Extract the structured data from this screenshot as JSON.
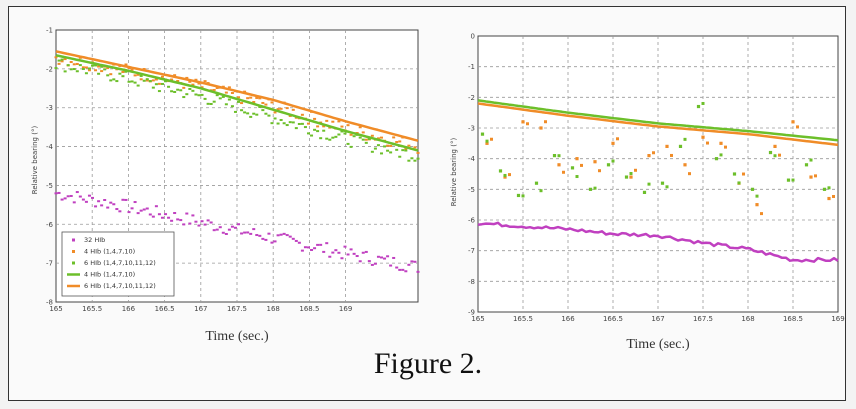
{
  "caption": "Figure 2.",
  "colors": {
    "magenta": "#c040c0",
    "orange": "#f08c28",
    "green": "#6cbf2a",
    "grid": "#9a9a9a"
  },
  "chart_data": [
    {
      "type": "line",
      "xlabel": "Time (sec.)",
      "ylabel": "Relative bearing (°)",
      "xlim": [
        165,
        170
      ],
      "ylim": [
        -8,
        -1
      ],
      "xticks": [
        165,
        165.5,
        166,
        166.5,
        167,
        167.5,
        168,
        168.5,
        169
      ],
      "xtick_labels": [
        "165",
        "165.5",
        "166",
        "166.5",
        "167",
        "167.5",
        "168",
        "168.5",
        "169"
      ],
      "yticks": [
        -1,
        -2,
        -3,
        -4,
        -5,
        -6,
        -7,
        -8
      ],
      "ytick_labels": [
        "-1",
        "-2",
        "-3",
        "-4",
        "-5",
        "-6",
        "-7",
        "-8"
      ],
      "grid": true,
      "legend": "bottom-left",
      "series": [
        {
          "name": "32 HIb",
          "style": "points",
          "color": "#c040c0",
          "x": [
            165,
            166,
            167,
            168,
            169,
            170
          ],
          "y": [
            -5.2,
            -5.55,
            -5.95,
            -6.35,
            -6.75,
            -7.1
          ]
        },
        {
          "name": "4 HIb (1,4,7,10)",
          "style": "points",
          "color": "#f08c28",
          "x": [
            165,
            166,
            167,
            168,
            169,
            170
          ],
          "y": [
            -1.7,
            -2.05,
            -2.45,
            -2.95,
            -3.55,
            -4.0
          ]
        },
        {
          "name": "6 HIb (1,4,7,10,11,12)",
          "style": "points",
          "color": "#6cbf2a",
          "x": [
            165,
            166,
            167,
            168,
            169,
            170
          ],
          "y": [
            -1.85,
            -2.25,
            -2.7,
            -3.25,
            -3.8,
            -4.25
          ]
        },
        {
          "name": "4 HIb (1,4,7,10)",
          "style": "line",
          "color": "#6cbf2a",
          "x": [
            165,
            166,
            167,
            168,
            169,
            170
          ],
          "y": [
            -1.65,
            -2.05,
            -2.5,
            -3.05,
            -3.6,
            -4.1
          ]
        },
        {
          "name": "6 HIb (1,4,7,10,11,12)",
          "style": "line",
          "color": "#f08c28",
          "x": [
            165,
            166,
            167,
            168,
            169,
            170
          ],
          "y": [
            -1.55,
            -1.95,
            -2.35,
            -2.8,
            -3.35,
            -3.85
          ]
        }
      ]
    },
    {
      "type": "line",
      "xlabel": "Time (sec.)",
      "ylabel": "Relative bearing (°)",
      "xlim": [
        165,
        169
      ],
      "ylim": [
        -9,
        0
      ],
      "xticks": [
        165,
        165.5,
        166,
        166.5,
        167,
        167.5,
        168,
        168.5,
        169
      ],
      "xtick_labels": [
        "165",
        "165.5",
        "166",
        "166.5",
        "167",
        "167.5",
        "168",
        "168.5",
        "169"
      ],
      "yticks": [
        0,
        -1,
        -2,
        -3,
        -4,
        -5,
        -6,
        -7,
        -8,
        -9
      ],
      "ytick_labels": [
        "0",
        "-1",
        "-2",
        "-3",
        "-4",
        "-5",
        "-6",
        "-7",
        "-8",
        "-9"
      ],
      "grid": true,
      "legend": "none",
      "series": [
        {
          "style": "line",
          "color": "#c040c0",
          "x": [
            165,
            165.5,
            166,
            166.5,
            167,
            167.5,
            168,
            168.5,
            169
          ],
          "y": [
            -6.1,
            -6.2,
            -6.3,
            -6.45,
            -6.5,
            -6.75,
            -6.95,
            -7.3,
            -7.3
          ]
        },
        {
          "style": "line",
          "color": "#6cbf2a",
          "x": [
            165,
            166,
            167,
            168,
            169
          ],
          "y": [
            -2.1,
            -2.5,
            -2.85,
            -3.1,
            -3.4
          ]
        },
        {
          "style": "line",
          "color": "#f08c28",
          "x": [
            165,
            166,
            167,
            168,
            169
          ],
          "y": [
            -2.2,
            -2.6,
            -2.95,
            -3.2,
            -3.55
          ]
        },
        {
          "style": "points",
          "color": "#f08c28",
          "x": [
            165.1,
            165.3,
            165.5,
            165.7,
            165.9,
            166.1,
            166.3,
            166.5,
            166.7,
            166.9,
            167.1,
            167.3,
            167.5,
            167.7,
            167.9,
            168.1,
            168.3,
            168.5,
            168.7,
            168.9
          ],
          "y": [
            -3.5,
            -4.6,
            -2.8,
            -3.0,
            -4.2,
            -4.0,
            -4.1,
            -3.5,
            -4.6,
            -3.9,
            -3.6,
            -4.2,
            -3.3,
            -3.5,
            -4.8,
            -5.5,
            -3.6,
            -2.8,
            -4.6,
            -5.3
          ]
        },
        {
          "style": "points",
          "color": "#6cbf2a",
          "x": [
            165.05,
            165.25,
            165.45,
            165.65,
            165.85,
            166.05,
            166.25,
            166.45,
            166.65,
            166.85,
            167.05,
            167.25,
            167.45,
            167.65,
            167.85,
            168.05,
            168.25,
            168.45,
            168.65,
            168.85
          ],
          "y": [
            -3.2,
            -4.4,
            -5.2,
            -4.8,
            -3.9,
            -4.3,
            -5.0,
            -4.2,
            -4.6,
            -5.1,
            -4.8,
            -3.6,
            -2.3,
            -4.0,
            -4.5,
            -5.0,
            -3.8,
            -4.7,
            -4.2,
            -5.0
          ]
        }
      ]
    }
  ]
}
